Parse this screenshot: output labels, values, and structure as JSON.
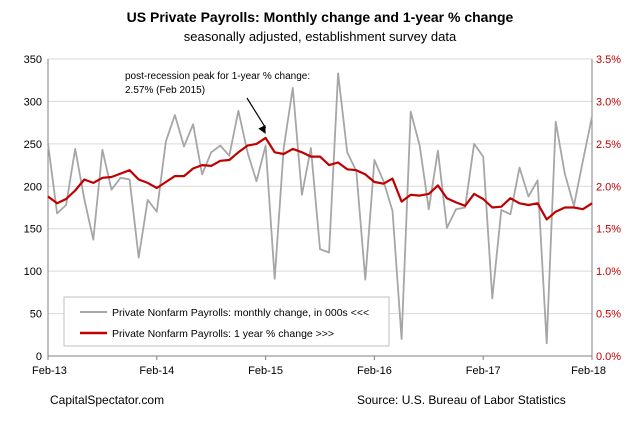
{
  "chart_data": {
    "type": "line",
    "title": "US Private Payrolls: Monthly change and 1-year % change",
    "subtitle": "seasonally adjusted, establishment survey data",
    "x_tick_labels": [
      "Feb-13",
      "Feb-14",
      "Feb-15",
      "Feb-16",
      "Feb-17",
      "Feb-18"
    ],
    "y_left": {
      "ticks": [
        "0",
        "50",
        "100",
        "150",
        "200",
        "250",
        "300",
        "350"
      ],
      "ylim": [
        0,
        350
      ]
    },
    "y_right": {
      "ticks": [
        "0.0%",
        "0.5%",
        "1.0%",
        "1.5%",
        "2.0%",
        "2.5%",
        "3.0%",
        "3.5%"
      ],
      "ylim": [
        0,
        3.5
      ]
    },
    "grid": "horizontal",
    "legend_position": "bottom-left",
    "x": [
      "2013-02",
      "2013-03",
      "2013-04",
      "2013-05",
      "2013-06",
      "2013-07",
      "2013-08",
      "2013-09",
      "2013-10",
      "2013-11",
      "2013-12",
      "2014-01",
      "2014-02",
      "2014-03",
      "2014-04",
      "2014-05",
      "2014-06",
      "2014-07",
      "2014-08",
      "2014-09",
      "2014-10",
      "2014-11",
      "2014-12",
      "2015-01",
      "2015-02",
      "2015-03",
      "2015-04",
      "2015-05",
      "2015-06",
      "2015-07",
      "2015-08",
      "2015-09",
      "2015-10",
      "2015-11",
      "2015-12",
      "2016-01",
      "2016-02",
      "2016-03",
      "2016-04",
      "2016-05",
      "2016-06",
      "2016-07",
      "2016-08",
      "2016-09",
      "2016-10",
      "2016-11",
      "2016-12",
      "2017-01",
      "2017-02",
      "2017-03",
      "2017-04",
      "2017-05",
      "2017-06",
      "2017-07",
      "2017-08",
      "2017-09",
      "2017-10",
      "2017-11",
      "2017-12",
      "2018-01",
      "2018-02"
    ],
    "series": [
      {
        "name": "Private Nonfarm Payrolls: monthly change, in 000s <<<",
        "axis": "left",
        "color": "#a6a6a6",
        "values": [
          250,
          168,
          178,
          244,
          185,
          137,
          243,
          196,
          210,
          208,
          116,
          184,
          170,
          253,
          284,
          247,
          273,
          214,
          240,
          248,
          236,
          289,
          240,
          206,
          248,
          91,
          245,
          316,
          190,
          245,
          126,
          122,
          333,
          240,
          218,
          90,
          231,
          206,
          171,
          20,
          288,
          248,
          173,
          242,
          151,
          173,
          175,
          250,
          235,
          68,
          172,
          167,
          222,
          188,
          207,
          15,
          276,
          215,
          177,
          230,
          282
        ]
      },
      {
        "name": "Private Nonfarm Payrolls:  1 year % change >>>",
        "axis": "right",
        "color": "#c00000",
        "values": [
          1.88,
          1.8,
          1.85,
          1.95,
          2.08,
          2.04,
          2.1,
          2.11,
          2.15,
          2.19,
          2.08,
          2.04,
          1.98,
          2.05,
          2.12,
          2.12,
          2.21,
          2.25,
          2.24,
          2.3,
          2.31,
          2.4,
          2.48,
          2.5,
          2.57,
          2.4,
          2.38,
          2.44,
          2.4,
          2.35,
          2.35,
          2.25,
          2.28,
          2.2,
          2.19,
          2.14,
          2.05,
          2.03,
          2.09,
          1.82,
          1.9,
          1.89,
          1.91,
          2.01,
          1.86,
          1.81,
          1.77,
          1.91,
          1.85,
          1.75,
          1.76,
          1.86,
          1.8,
          1.78,
          1.8,
          1.61,
          1.7,
          1.75,
          1.75,
          1.73,
          1.8
        ]
      }
    ],
    "annotation": {
      "text_line1": "post-recession peak for 1-year % change:",
      "text_line2": "2.57% (Feb 2015)",
      "points_to": "2015-02"
    },
    "source_left": "CapitalSpectator.com",
    "source_right": "Source: U.S. Bureau of Labor Statistics"
  },
  "colors": {
    "accent_red": "#c00000",
    "monthly_gray": "#a6a6a6",
    "grid": "#d9d9d9",
    "axis": "#808080"
  }
}
